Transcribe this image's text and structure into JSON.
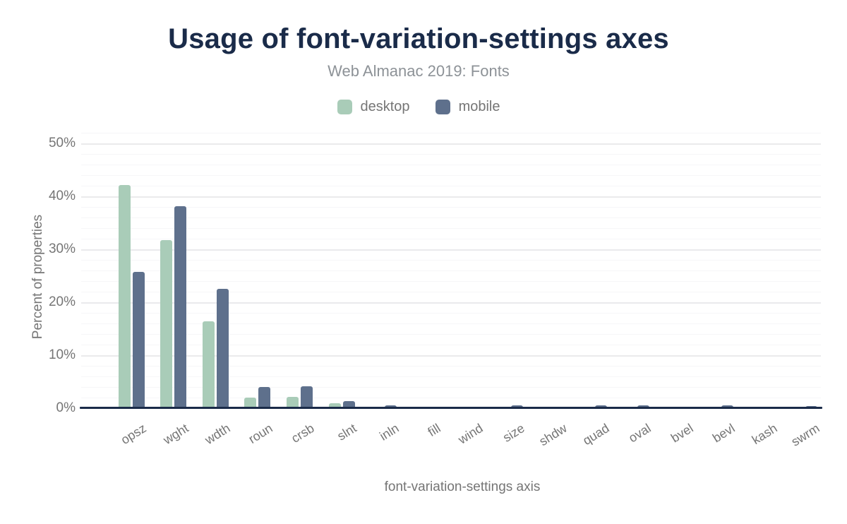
{
  "header": {
    "title": "Usage of font-variation-settings axes",
    "subtitle": "Web Almanac 2019: Fonts"
  },
  "legend": {
    "items": [
      {
        "label": "desktop",
        "color": "#a9ccb8"
      },
      {
        "label": "mobile",
        "color": "#5e708c"
      }
    ]
  },
  "chart_data": {
    "type": "bar",
    "title": "Usage of font-variation-settings axes",
    "subtitle": "Web Almanac 2019: Fonts",
    "xlabel": "font-variation-settings axis",
    "ylabel": "Percent of properties",
    "categories": [
      "opsz",
      "wght",
      "wdth",
      "roun",
      "crsb",
      "slnt",
      "inln",
      "fill",
      "wind",
      "size",
      "shdw",
      "quad",
      "oval",
      "bvel",
      "bevl",
      "kash",
      "swrm"
    ],
    "series": [
      {
        "name": "desktop",
        "color": "#a9ccb8",
        "values": [
          42.2,
          31.8,
          16.4,
          2.0,
          2.2,
          0.9,
          0.3,
          0.3,
          0.3,
          0.3,
          0.3,
          0.3,
          0.3,
          0.3,
          0.3,
          0.3,
          0.1
        ]
      },
      {
        "name": "mobile",
        "color": "#5e708c",
        "values": [
          25.7,
          38.2,
          22.6,
          4.0,
          4.1,
          1.3,
          0.5,
          0.05,
          0.05,
          0.6,
          0.05,
          0.6,
          0.6,
          0.05,
          0.6,
          0.05,
          0.4
        ]
      }
    ],
    "ylim": [
      0,
      52
    ],
    "y_ticks": [
      "0%",
      "10%",
      "20%",
      "30%",
      "40%",
      "50%"
    ],
    "y_tick_values": [
      0,
      10,
      20,
      30,
      40,
      50
    ],
    "grid": {
      "enabled": true,
      "minor_step": 2,
      "major_step": 10
    },
    "legend_position": "top"
  },
  "colors": {
    "title": "#1a2b49",
    "subtitle": "#8d9297",
    "tick_text": "#757575",
    "axis_line": "#1a2b49",
    "grid_major": "#eaeaec",
    "grid_minor": "#f6f6f8",
    "desktop": "#a9ccb8",
    "mobile": "#5e708c",
    "background": "#ffffff"
  }
}
